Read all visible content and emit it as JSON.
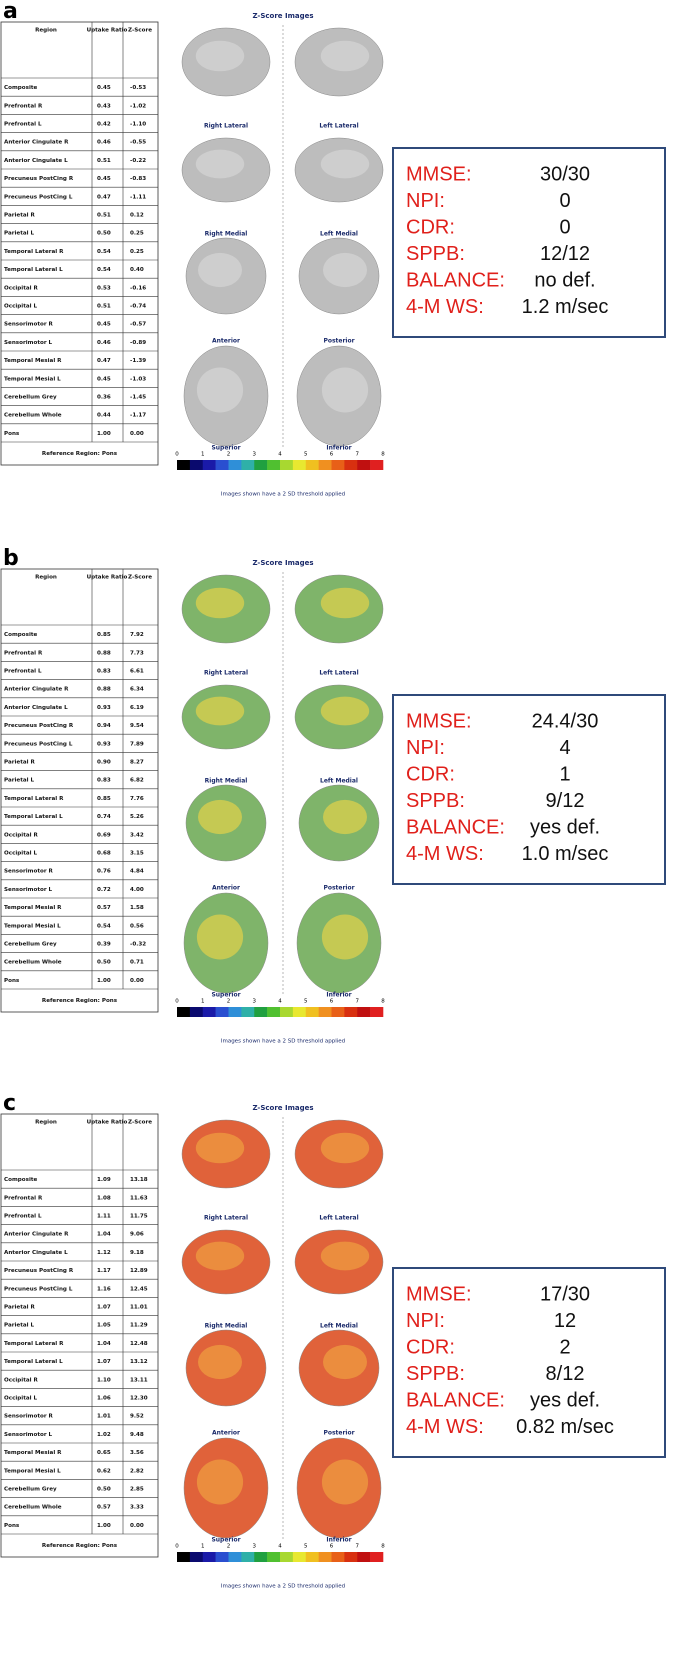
{
  "panels": [
    {
      "letter": "a",
      "table": {
        "headers": [
          "Region",
          "Uptake Ratio",
          "Z-Score"
        ],
        "rows": [
          [
            "Composite",
            "0.45",
            "-0.53"
          ],
          [
            "Prefrontal R",
            "0.43",
            "-1.02"
          ],
          [
            "Prefrontal L",
            "0.42",
            "-1.10"
          ],
          [
            "Anterior Cingulate R",
            "0.46",
            "-0.55"
          ],
          [
            "Anterior Cingulate L",
            "0.51",
            "-0.22"
          ],
          [
            "Precuneus PostCing R",
            "0.45",
            "-0.83"
          ],
          [
            "Precuneus PostCing L",
            "0.47",
            "-1.11"
          ],
          [
            "Parietal R",
            "0.51",
            "0.12"
          ],
          [
            "Parietal L",
            "0.50",
            "0.25"
          ],
          [
            "Temporal Lateral R",
            "0.54",
            "0.25"
          ],
          [
            "Temporal Lateral L",
            "0.54",
            "0.40"
          ],
          [
            "Occipital R",
            "0.53",
            "-0.16"
          ],
          [
            "Occipital L",
            "0.51",
            "-0.74"
          ],
          [
            "Sensorimotor R",
            "0.45",
            "-0.57"
          ],
          [
            "Sensorimotor L",
            "0.46",
            "-0.89"
          ],
          [
            "Temporal Mesial R",
            "0.47",
            "-1.39"
          ],
          [
            "Temporal Mesial L",
            "0.45",
            "-1.03"
          ],
          [
            "Cerebellum Grey",
            "0.36",
            "-1.45"
          ],
          [
            "Cerebellum Whole",
            "0.44",
            "-1.17"
          ],
          [
            "Pons",
            "1.00",
            "0.00"
          ]
        ],
        "footer": "Reference Region: Pons"
      },
      "images": {
        "title": "Z-Score Images",
        "views": [
          "Right Lateral",
          "Left Lateral",
          "Right Medial",
          "Left Medial",
          "Anterior",
          "Posterior",
          "Superior",
          "Inferior"
        ],
        "colorbar_ticks": [
          0,
          1,
          2,
          3,
          4,
          5,
          6,
          7,
          8
        ],
        "note": "Images shown have a 2 SD threshold applied"
      },
      "clinical": [
        [
          "MMSE:",
          "30/30"
        ],
        [
          "NPI:",
          "0"
        ],
        [
          "CDR:",
          "0"
        ],
        [
          "SPPB:",
          "12/12"
        ],
        [
          "BALANCE:",
          "no def."
        ],
        [
          "4-M WS:",
          "1.2 m/sec"
        ]
      ]
    },
    {
      "letter": "b",
      "table": {
        "headers": [
          "Region",
          "Uptake Ratio",
          "Z-Score"
        ],
        "rows": [
          [
            "Composite",
            "0.85",
            "7.92"
          ],
          [
            "Prefrontal R",
            "0.88",
            "7.73"
          ],
          [
            "Prefrontal L",
            "0.83",
            "6.61"
          ],
          [
            "Anterior Cingulate R",
            "0.88",
            "6.34"
          ],
          [
            "Anterior Cingulate L",
            "0.93",
            "6.19"
          ],
          [
            "Precuneus PostCing R",
            "0.94",
            "9.54"
          ],
          [
            "Precuneus PostCing L",
            "0.93",
            "7.89"
          ],
          [
            "Parietal R",
            "0.90",
            "8.27"
          ],
          [
            "Parietal L",
            "0.83",
            "6.82"
          ],
          [
            "Temporal Lateral R",
            "0.85",
            "7.76"
          ],
          [
            "Temporal Lateral L",
            "0.74",
            "5.26"
          ],
          [
            "Occipital R",
            "0.69",
            "3.42"
          ],
          [
            "Occipital L",
            "0.68",
            "3.15"
          ],
          [
            "Sensorimotor R",
            "0.76",
            "4.84"
          ],
          [
            "Sensorimotor L",
            "0.72",
            "4.00"
          ],
          [
            "Temporal Mesial R",
            "0.57",
            "1.58"
          ],
          [
            "Temporal Mesial L",
            "0.54",
            "0.56"
          ],
          [
            "Cerebellum Grey",
            "0.39",
            "-0.32"
          ],
          [
            "Cerebellum Whole",
            "0.50",
            "0.71"
          ],
          [
            "Pons",
            "1.00",
            "0.00"
          ]
        ],
        "footer": "Reference Region: Pons"
      },
      "images": {
        "title": "Z-Score Images",
        "views": [
          "Right Lateral",
          "Left Lateral",
          "Right Medial",
          "Left Medial",
          "Anterior",
          "Posterior",
          "Superior",
          "Inferior"
        ],
        "colorbar_ticks": [
          0,
          1,
          2,
          3,
          4,
          5,
          6,
          7,
          8
        ],
        "note": "Images shown have a 2 SD threshold applied"
      },
      "clinical": [
        [
          "MMSE:",
          "24.4/30"
        ],
        [
          "NPI:",
          "4"
        ],
        [
          "CDR:",
          "1"
        ],
        [
          "SPPB:",
          "9/12"
        ],
        [
          "BALANCE:",
          "yes def."
        ],
        [
          "4-M WS:",
          "1.0 m/sec"
        ]
      ]
    },
    {
      "letter": "c",
      "table": {
        "headers": [
          "Region",
          "Uptake Ratio",
          "Z-Score"
        ],
        "rows": [
          [
            "Composite",
            "1.09",
            "13.18"
          ],
          [
            "Prefrontal R",
            "1.08",
            "11.63"
          ],
          [
            "Prefrontal L",
            "1.11",
            "11.75"
          ],
          [
            "Anterior Cingulate R",
            "1.04",
            "9.06"
          ],
          [
            "Anterior Cingulate L",
            "1.12",
            "9.18"
          ],
          [
            "Precuneus PostCing R",
            "1.17",
            "12.89"
          ],
          [
            "Precuneus PostCing L",
            "1.16",
            "12.45"
          ],
          [
            "Parietal R",
            "1.07",
            "11.01"
          ],
          [
            "Parietal L",
            "1.05",
            "11.29"
          ],
          [
            "Temporal Lateral R",
            "1.04",
            "12.48"
          ],
          [
            "Temporal Lateral L",
            "1.07",
            "13.12"
          ],
          [
            "Occipital R",
            "1.10",
            "13.11"
          ],
          [
            "Occipital L",
            "1.06",
            "12.30"
          ],
          [
            "Sensorimotor R",
            "1.01",
            "9.52"
          ],
          [
            "Sensorimotor L",
            "1.02",
            "9.48"
          ],
          [
            "Temporal Mesial R",
            "0.65",
            "3.56"
          ],
          [
            "Temporal Mesial L",
            "0.62",
            "2.82"
          ],
          [
            "Cerebellum Grey",
            "0.50",
            "2.85"
          ],
          [
            "Cerebellum Whole",
            "0.57",
            "3.33"
          ],
          [
            "Pons",
            "1.00",
            "0.00"
          ]
        ],
        "footer": "Reference Region: Pons"
      },
      "images": {
        "title": "Z-Score Images",
        "views": [
          "Right Lateral",
          "Left Lateral",
          "Right Medial",
          "Left Medial",
          "Anterior",
          "Posterior",
          "Superior",
          "Inferior"
        ],
        "colorbar_ticks": [
          0,
          1,
          2,
          3,
          4,
          5,
          6,
          7,
          8
        ],
        "note": "Images shown have a 2 SD threshold applied"
      },
      "clinical": [
        [
          "MMSE:",
          "17/30"
        ],
        [
          "NPI:",
          "12"
        ],
        [
          "CDR:",
          "2"
        ],
        [
          "SPPB:",
          "8/12"
        ],
        [
          "BALANCE:",
          "yes def."
        ],
        [
          "4-M WS:",
          "0.82 m/sec"
        ]
      ]
    }
  ]
}
